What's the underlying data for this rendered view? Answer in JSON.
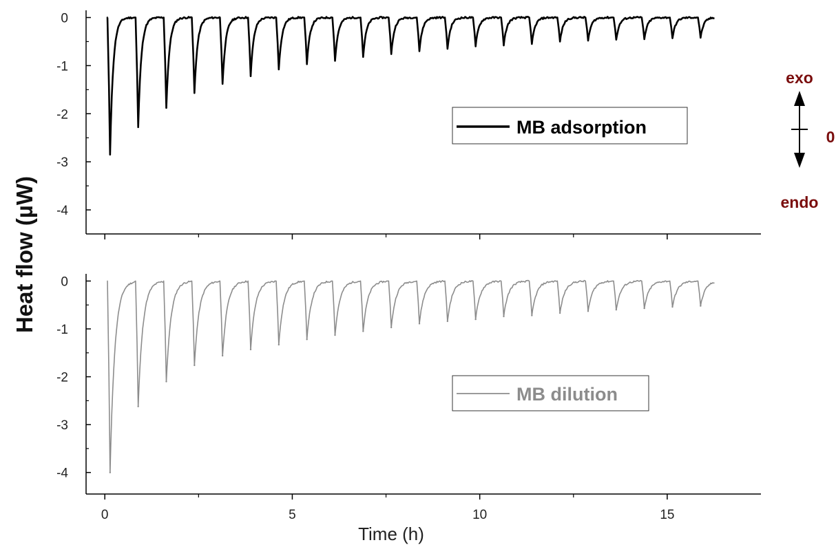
{
  "chart_data": [
    {
      "type": "line",
      "title": "",
      "ylabel": "Heat flow (µW)",
      "xlabel": "",
      "xlim": [
        -0.5,
        17.5
      ],
      "ylim": [
        -4.5,
        0.15
      ],
      "x_ticks": [
        0,
        5,
        10,
        15
      ],
      "y_ticks": [
        0,
        -1,
        -2,
        -3,
        -4
      ],
      "y_tick_labels": [
        "0",
        "-1",
        "-2",
        "-3",
        "-4"
      ],
      "legend": "right",
      "series": [
        {
          "name": "MB adsorption",
          "color": "#000000",
          "x": [
            0.1,
            0.85,
            1.6,
            2.35,
            3.1,
            3.85,
            4.6,
            5.35,
            6.1,
            6.85,
            7.6,
            8.35,
            9.1,
            9.85,
            10.6,
            11.35,
            12.1,
            12.85,
            13.6,
            14.35,
            15.1,
            15.85
          ],
          "values": [
            -2.85,
            -2.28,
            -1.88,
            -1.57,
            -1.38,
            -1.22,
            -1.08,
            -0.97,
            -0.9,
            -0.82,
            -0.76,
            -0.7,
            -0.65,
            -0.6,
            -0.58,
            -0.55,
            -0.5,
            -0.48,
            -0.46,
            -0.45,
            -0.43,
            -0.42
          ]
        }
      ]
    },
    {
      "type": "line",
      "title": "",
      "ylabel": "",
      "xlabel": "Time (h)",
      "xlim": [
        -0.5,
        17.5
      ],
      "ylim": [
        -4.45,
        0.15
      ],
      "x_ticks": [
        0,
        5,
        10,
        15
      ],
      "x_tick_labels": [
        "0",
        "5",
        "10",
        "15"
      ],
      "y_ticks": [
        0,
        -1,
        -2,
        -3,
        -4
      ],
      "y_tick_labels": [
        "0",
        "-1",
        "-2",
        "-3",
        "-4"
      ],
      "legend": "right",
      "series": [
        {
          "name": "MB dilution",
          "color": "#8c8c8c",
          "x": [
            0.1,
            0.85,
            1.6,
            2.35,
            3.1,
            3.85,
            4.6,
            5.35,
            6.1,
            6.85,
            7.6,
            8.35,
            9.1,
            9.85,
            10.6,
            11.35,
            12.1,
            12.85,
            13.6,
            14.35,
            15.1,
            15.85
          ],
          "values": [
            -4.0,
            -2.62,
            -2.1,
            -1.76,
            -1.56,
            -1.43,
            -1.33,
            -1.22,
            -1.13,
            -1.05,
            -0.97,
            -0.89,
            -0.84,
            -0.8,
            -0.74,
            -0.72,
            -0.67,
            -0.63,
            -0.6,
            -0.57,
            -0.54,
            -0.52
          ]
        }
      ]
    }
  ],
  "indicator": {
    "exo_label": "exo",
    "zero_label": "0",
    "endo_label": "endo",
    "color": "#7a0d0d"
  }
}
